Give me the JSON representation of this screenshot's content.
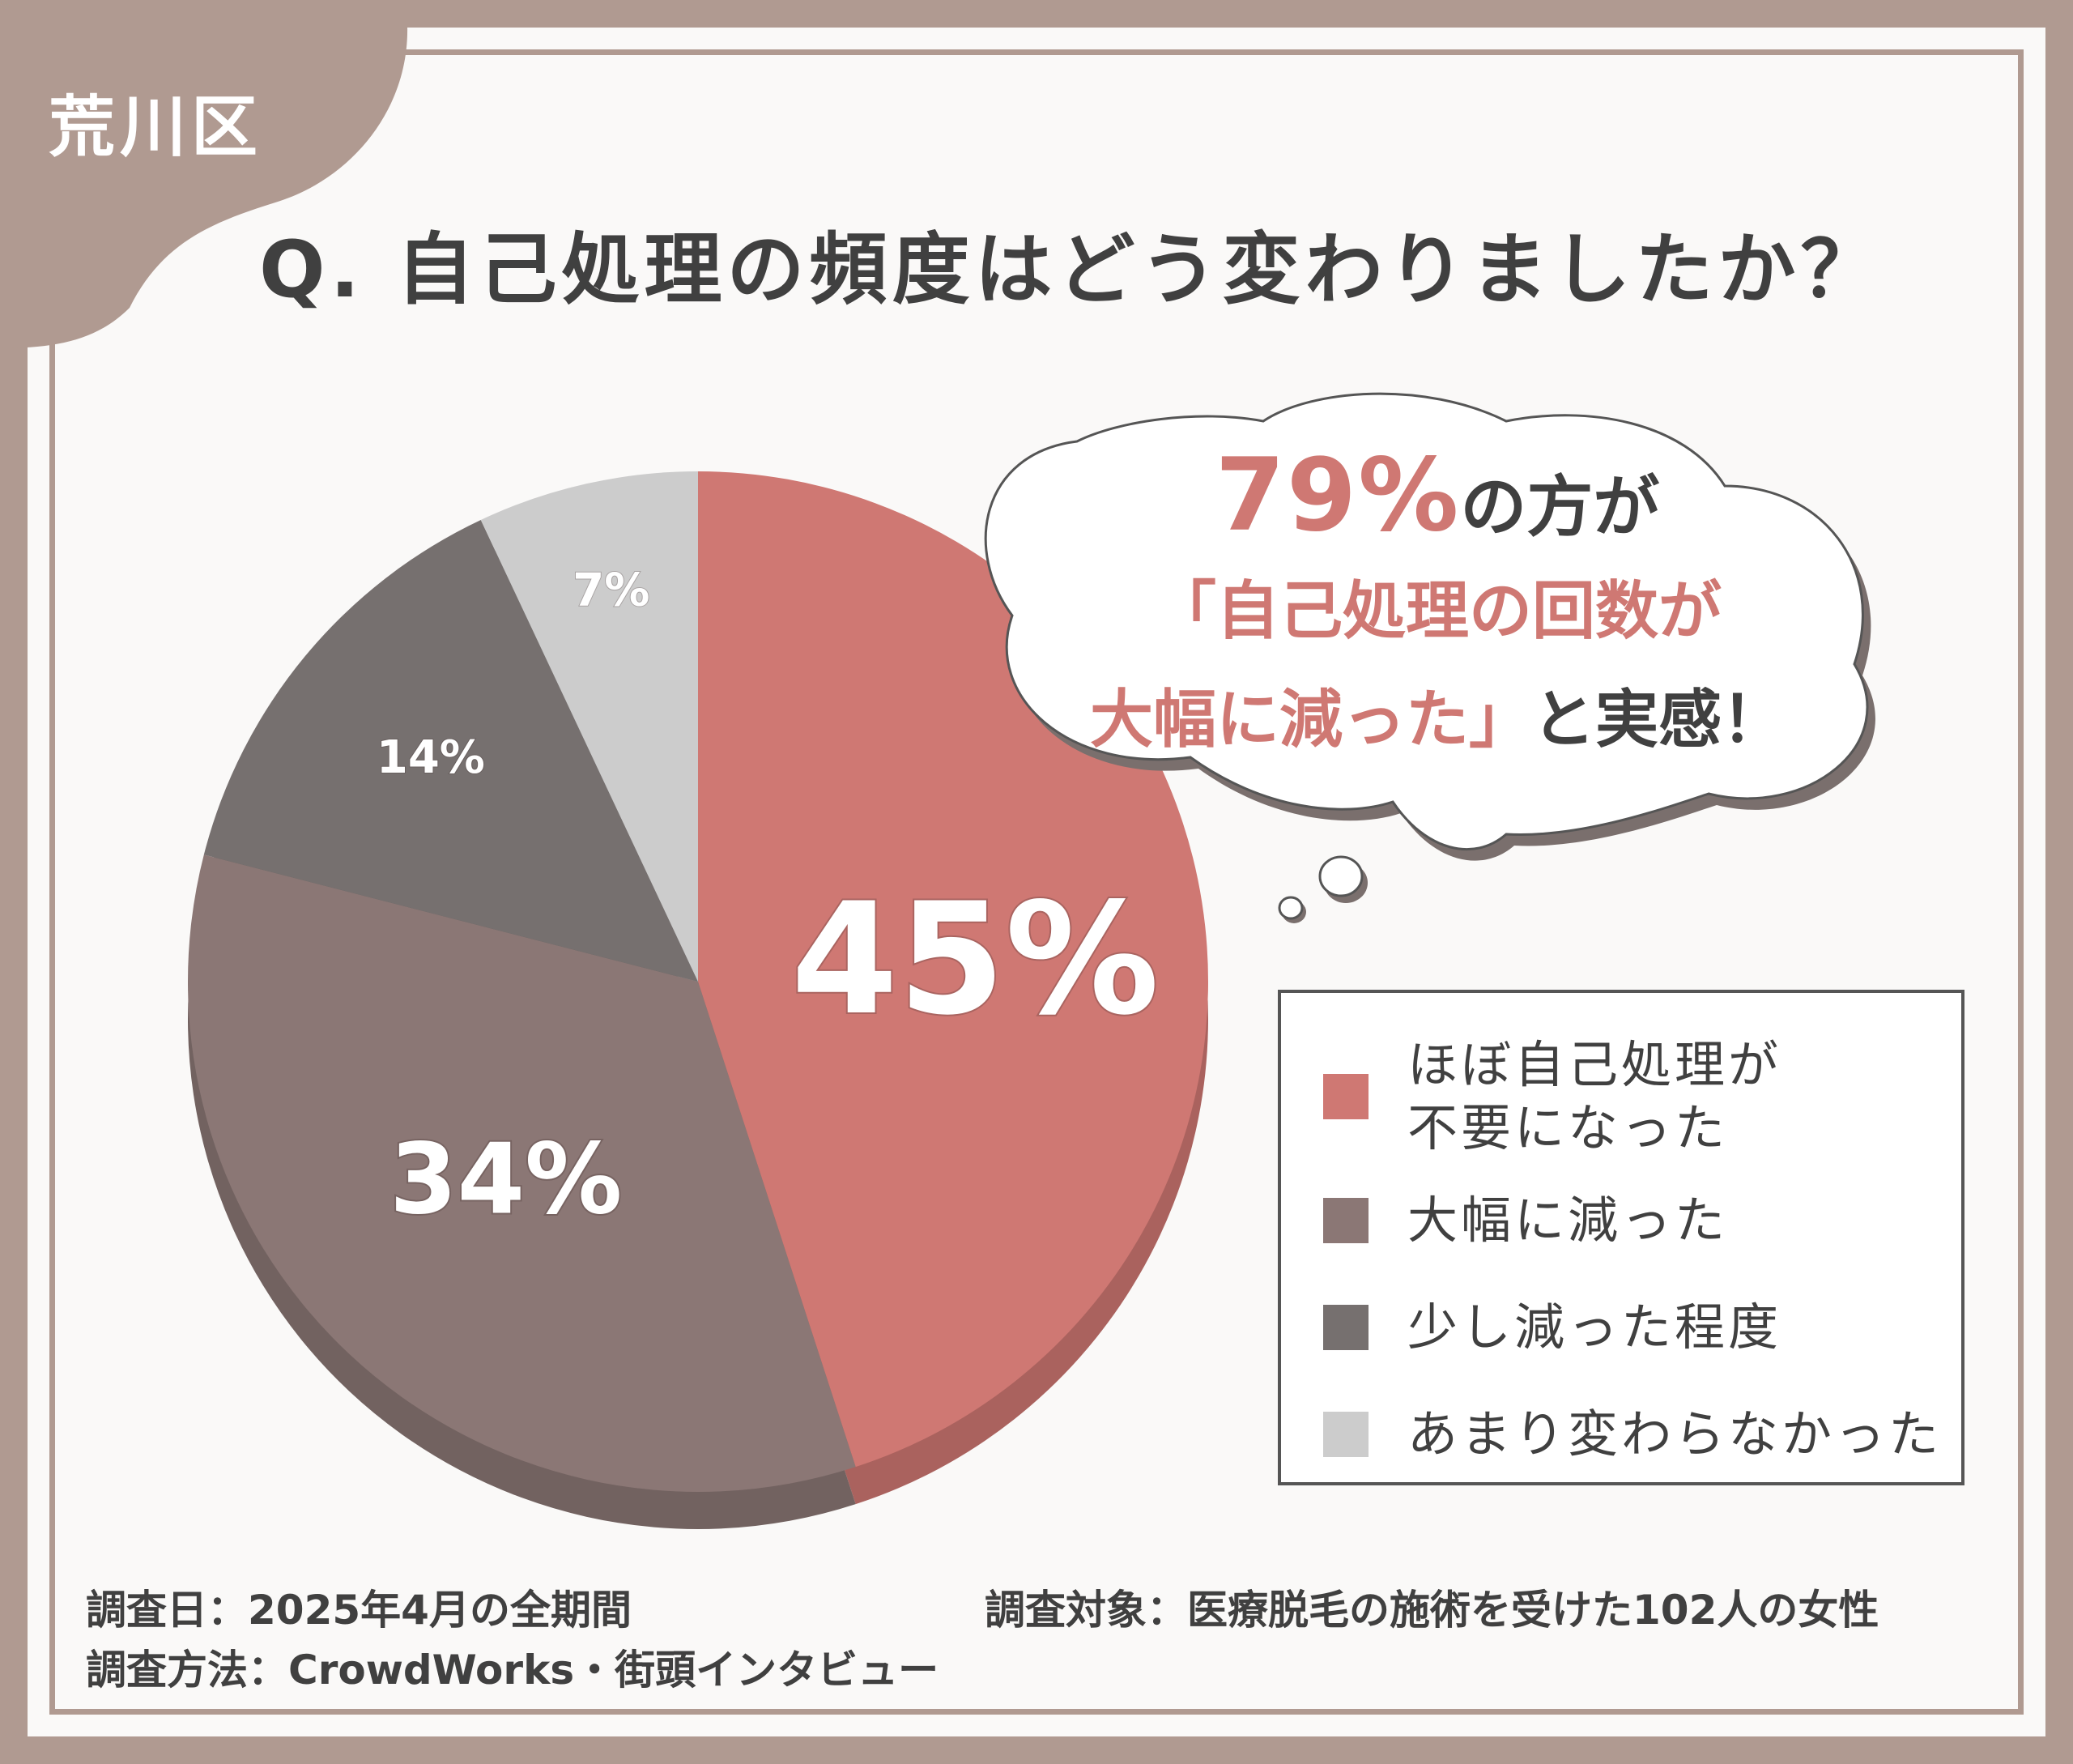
{
  "region": "荒川区",
  "question": "Q. 自己処理の頻度はどう変わりましたか？",
  "callout": {
    "percent": "79%",
    "line1_suffix": "の方が",
    "line2": "「自己処理の回数が",
    "line3_accent": "大幅に減った」",
    "line3_rest": "と実感！"
  },
  "chart_data": {
    "type": "pie",
    "slices": [
      {
        "label": "ほぼ自己処理が不要になった",
        "value": 45,
        "display": "45%",
        "color": "#cf7873"
      },
      {
        "label": "大幅に減った",
        "value": 34,
        "display": "34%",
        "color": "#8b7775"
      },
      {
        "label": "少し減った程度",
        "value": 14,
        "display": "14%",
        "color": "#76706f"
      },
      {
        "label": "あまり変わらなかった",
        "value": 7,
        "display": "7%",
        "color": "#cccccc"
      }
    ]
  },
  "legend": [
    {
      "line1": "ほぼ自己処理が",
      "line2": "不要になった"
    },
    {
      "line1": "大幅に減った",
      "line2": ""
    },
    {
      "line1": "少し減った程度",
      "line2": ""
    },
    {
      "line1": "あまり変わらなかった",
      "line2": ""
    }
  ],
  "footer": {
    "date": "調査日：2025年4月の全期間",
    "method": "調査方法：CrowdWorks・街頭インタビュー",
    "target": "調査対象：医療脱毛の施術を受けた102人の女性"
  }
}
